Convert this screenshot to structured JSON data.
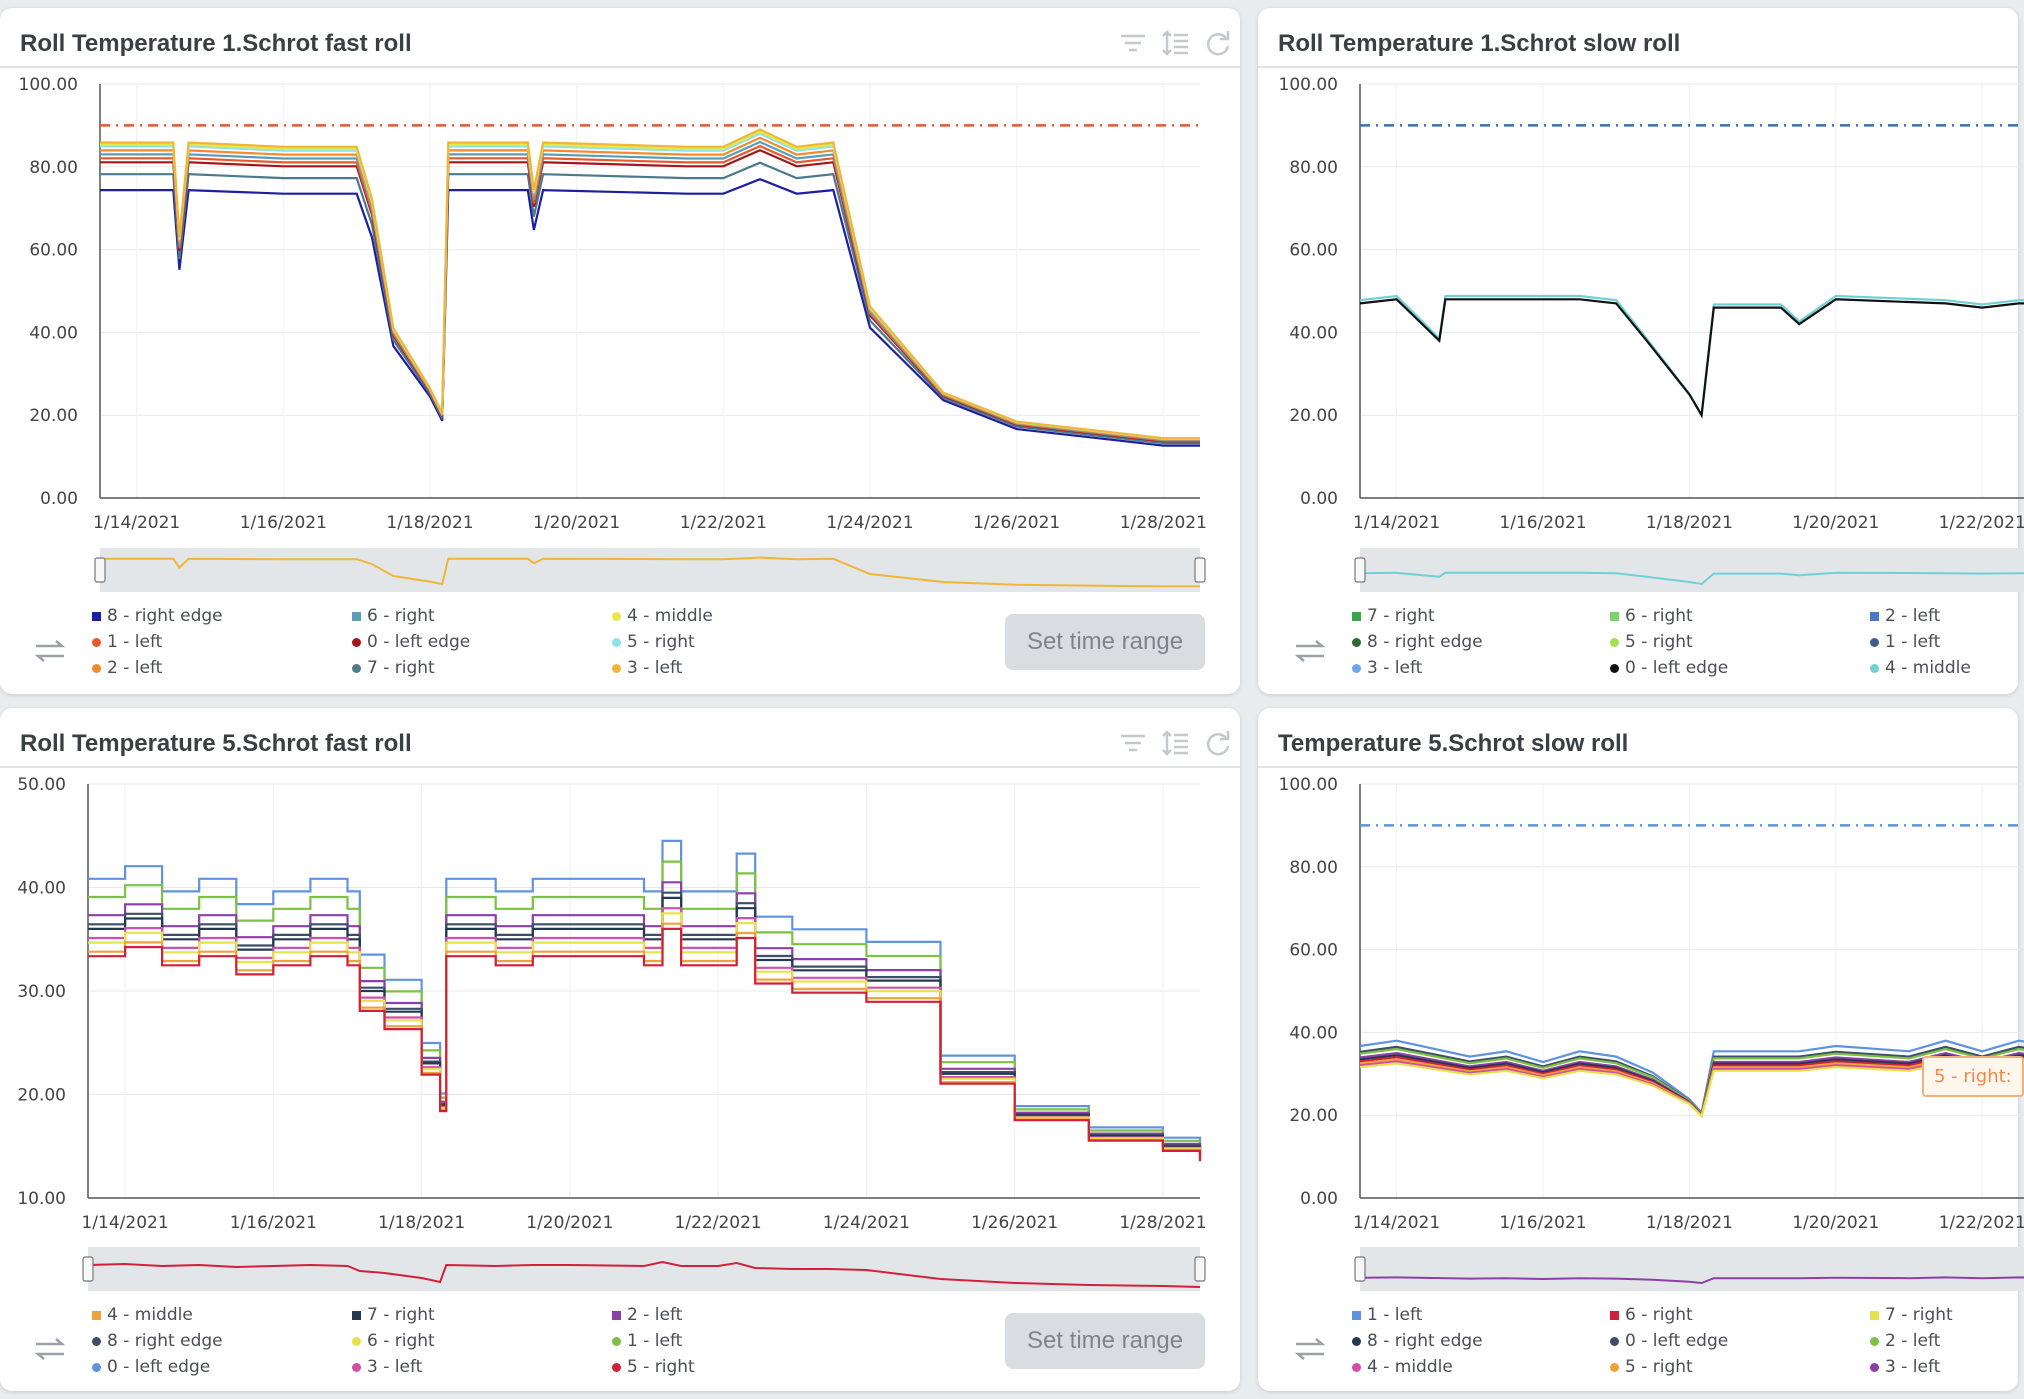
{
  "button_label": "Set time range",
  "tooltip_text": "5 - right:",
  "chart_data": [
    {
      "id": "c1",
      "type": "line",
      "title": "Roll Temperature 1.Schrot fast roll",
      "xlim": [
        "2021-01-13T12:00",
        "2021-01-28T12:00"
      ],
      "xticks": [
        "1/14/2021",
        "1/16/2021",
        "1/18/2021",
        "1/20/2021",
        "1/22/2021",
        "1/24/2021",
        "1/26/2021",
        "1/28/2021"
      ],
      "ylim": [
        0,
        100
      ],
      "yticks": [
        "0.00",
        "20.00",
        "40.00",
        "60.00",
        "80.00",
        "100.00"
      ],
      "threshold": 90,
      "threshold_color": "#e8582b",
      "legend": [
        {
          "name": "8 - right edge",
          "color": "#1f1ea0"
        },
        {
          "name": "6 - right",
          "color": "#5b9db5"
        },
        {
          "name": "4 - middle",
          "color": "#e6e84a"
        },
        {
          "name": "1 - left",
          "color": "#e8582b"
        },
        {
          "name": "0 - left edge",
          "color": "#a3161b"
        },
        {
          "name": "5 - right",
          "color": "#8ee2e8"
        },
        {
          "name": "2 - left",
          "color": "#f28a2e"
        },
        {
          "name": "7 - right",
          "color": "#4a7a8c"
        },
        {
          "name": "3 - left",
          "color": "#f0b63a"
        }
      ],
      "profile": {
        "x": [
          "2021-01-13T12:00",
          "2021-01-14T12:00",
          "2021-01-14T14:00",
          "2021-01-14T17:00",
          "2021-01-16T00:00",
          "2021-01-16T12:00",
          "2021-01-17T00:00",
          "2021-01-17T05:00",
          "2021-01-17T12:00",
          "2021-01-18T00:00",
          "2021-01-18T04:00",
          "2021-01-18T06:00",
          "2021-01-19T08:00",
          "2021-01-19T10:00",
          "2021-01-19T13:00",
          "2021-01-21T12:00",
          "2021-01-22T00:00",
          "2021-01-22T12:00",
          "2021-01-23T00:00",
          "2021-01-23T12:00",
          "2021-01-24T00:00",
          "2021-01-25T00:00",
          "2021-01-26T00:00",
          "2021-01-27T00:00",
          "2021-01-28T00:00",
          "2021-01-28T12:00"
        ],
        "y": [
          83,
          83,
          61,
          83,
          82,
          82,
          82,
          70,
          40,
          26,
          20,
          83,
          83,
          72,
          83,
          82,
          82,
          86,
          82,
          83,
          45,
          25,
          18,
          16,
          14,
          14
        ]
      },
      "series_offsets": [
        {
          "name": "8 - right edge",
          "offset": -9
        },
        {
          "name": "7 - right",
          "offset": -5
        },
        {
          "name": "0 - left edge",
          "offset": -2
        },
        {
          "name": "1 - left",
          "offset": -1
        },
        {
          "name": "6 - right",
          "offset": 0
        },
        {
          "name": "2 - left",
          "offset": 1
        },
        {
          "name": "5 - right",
          "offset": 2
        },
        {
          "name": "4 - middle",
          "offset": 2.5
        },
        {
          "name": "3 - left",
          "offset": 3
        }
      ]
    },
    {
      "id": "c2",
      "type": "line",
      "title": "Roll Temperature 1.Schrot slow roll",
      "xlim": [
        "2021-01-13T12:00",
        "2021-01-28T12:00"
      ],
      "xticks": [
        "1/14/2021",
        "1/16/2021",
        "1/18/2021",
        "1/20/2021",
        "1/22/2021"
      ],
      "ylim": [
        0,
        100
      ],
      "yticks": [
        "0.00",
        "20.00",
        "40.00",
        "60.00",
        "80.00",
        "100.00"
      ],
      "threshold": 90,
      "threshold_color": "#3d6fb0",
      "legend": [
        {
          "name": "7 - right",
          "color": "#3ea34d"
        },
        {
          "name": "6 - right",
          "color": "#7dd36b"
        },
        {
          "name": "2 - left",
          "color": "#4a78c8"
        },
        {
          "name": "8 - right edge",
          "color": "#2e6b35"
        },
        {
          "name": "5 - right",
          "color": "#a3e04d"
        },
        {
          "name": "1 - left",
          "color": "#3f5f8a"
        },
        {
          "name": "3 - left",
          "color": "#6ea5e8"
        },
        {
          "name": "0 - left edge",
          "color": "#111111"
        },
        {
          "name": "4 - middle",
          "color": "#6fd0d6"
        }
      ],
      "profile": {
        "x": [
          "2021-01-13T12:00",
          "2021-01-14T00:00",
          "2021-01-14T14:00",
          "2021-01-14T16:00",
          "2021-01-16T12:00",
          "2021-01-17T00:00",
          "2021-01-17T10:00",
          "2021-01-18T00:00",
          "2021-01-18T04:00",
          "2021-01-18T08:00",
          "2021-01-19T06:00",
          "2021-01-19T12:00",
          "2021-01-20T00:00",
          "2021-01-21T12:00",
          "2021-01-22T00:00",
          "2021-01-22T12:00",
          "2021-01-23T00:00",
          "2021-01-28T12:00"
        ],
        "y": [
          47,
          48,
          38,
          48,
          48,
          47,
          38,
          25,
          20,
          46,
          46,
          42,
          48,
          47,
          46,
          47,
          47,
          47
        ]
      },
      "series_offsets": [
        {
          "name": "4 - middle",
          "offset": 0.8
        },
        {
          "name": "0 - left edge",
          "offset": 0
        }
      ]
    },
    {
      "id": "c3",
      "type": "line",
      "title": "Roll Temperature 5.Schrot fast roll",
      "xlim": [
        "2021-01-13T12:00",
        "2021-01-28T12:00"
      ],
      "xticks": [
        "1/14/2021",
        "1/16/2021",
        "1/18/2021",
        "1/20/2021",
        "1/22/2021",
        "1/24/2021",
        "1/26/2021",
        "1/28/2021"
      ],
      "ylim": [
        10,
        50
      ],
      "yticks": [
        "10.00",
        "20.00",
        "30.00",
        "40.00",
        "50.00"
      ],
      "threshold": null,
      "legend": [
        {
          "name": "4 - middle",
          "color": "#f0a23a"
        },
        {
          "name": "7 - right",
          "color": "#243a52"
        },
        {
          "name": "2 - left",
          "color": "#8b3fa8"
        },
        {
          "name": "8 - right edge",
          "color": "#3d4e66"
        },
        {
          "name": "6 - right",
          "color": "#e6e34a"
        },
        {
          "name": "1 - left",
          "color": "#7cc142"
        },
        {
          "name": "0 - left edge",
          "color": "#5f93df"
        },
        {
          "name": "3 - left",
          "color": "#d04fa8"
        },
        {
          "name": "5 - right",
          "color": "#d41f3a"
        }
      ],
      "profile": {
        "x": [
          "2021-01-13T12:00",
          "2021-01-14T00:00",
          "2021-01-14T12:00",
          "2021-01-15T00:00",
          "2021-01-15T12:00",
          "2021-01-16T00:00",
          "2021-01-16T12:00",
          "2021-01-17T00:00",
          "2021-01-17T04:00",
          "2021-01-17T12:00",
          "2021-01-18T00:00",
          "2021-01-18T06:00",
          "2021-01-18T08:00",
          "2021-01-19T00:00",
          "2021-01-19T12:00",
          "2021-01-20T00:00",
          "2021-01-21T00:00",
          "2021-01-21T06:00",
          "2021-01-21T12:00",
          "2021-01-22T00:00",
          "2021-01-22T06:00",
          "2021-01-22T12:00",
          "2021-01-23T00:00",
          "2021-01-23T12:00",
          "2021-01-24T00:00",
          "2021-01-25T00:00",
          "2021-01-26T00:00",
          "2021-01-27T00:00",
          "2021-01-28T00:00",
          "2021-01-28T12:00"
        ],
        "y": [
          36,
          37,
          35,
          36,
          34,
          35,
          36,
          35,
          30,
          28,
          23,
          19,
          36,
          35,
          36,
          36,
          35,
          39,
          35,
          35,
          38,
          33,
          32,
          32,
          31,
          22,
          18,
          16,
          15,
          14
        ]
      },
      "series_offsets": [
        {
          "name": "0 - left edge",
          "offset": 5.5
        },
        {
          "name": "1 - left",
          "offset": 3.5
        },
        {
          "name": "2 - left",
          "offset": 1.5
        },
        {
          "name": "8 - right edge",
          "offset": 0.5
        },
        {
          "name": "7 - right",
          "offset": 0
        },
        {
          "name": "3 - left",
          "offset": -1
        },
        {
          "name": "6 - right",
          "offset": -1.5
        },
        {
          "name": "4 - middle",
          "offset": -2.5
        },
        {
          "name": "5 - right",
          "offset": -3
        }
      ]
    },
    {
      "id": "c4",
      "type": "line",
      "title": "Temperature 5.Schrot slow roll",
      "xlim": [
        "2021-01-13T12:00",
        "2021-01-28T12:00"
      ],
      "xticks": [
        "1/14/2021",
        "1/16/2021",
        "1/18/2021",
        "1/20/2021",
        "1/22/2021"
      ],
      "ylim": [
        0,
        100
      ],
      "yticks": [
        "0.00",
        "20.00",
        "40.00",
        "60.00",
        "80.00",
        "100.00"
      ],
      "threshold": 90,
      "threshold_color": "#5b93df",
      "legend": [
        {
          "name": "1 - left",
          "color": "#5f93df"
        },
        {
          "name": "6 - right",
          "color": "#d41f3a"
        },
        {
          "name": "7 - right",
          "color": "#e6e34a"
        },
        {
          "name": "8 - right edge",
          "color": "#243a52"
        },
        {
          "name": "0 - left edge",
          "color": "#3d4e66"
        },
        {
          "name": "2 - left",
          "color": "#7cc142"
        },
        {
          "name": "4 - middle",
          "color": "#d04fa8"
        },
        {
          "name": "5 - right",
          "color": "#f0a23a"
        },
        {
          "name": "3 - left",
          "color": "#8b3fa8"
        }
      ],
      "profile": {
        "x": [
          "2021-01-13T12:00",
          "2021-01-14T00:00",
          "2021-01-15T00:00",
          "2021-01-15T12:00",
          "2021-01-16T00:00",
          "2021-01-16T12:00",
          "2021-01-17T00:00",
          "2021-01-17T12:00",
          "2021-01-18T00:00",
          "2021-01-18T04:00",
          "2021-01-18T08:00",
          "2021-01-19T12:00",
          "2021-01-20T00:00",
          "2021-01-21T00:00",
          "2021-01-21T12:00",
          "2021-01-22T00:00",
          "2021-01-22T12:00",
          "2021-01-23T00:00",
          "2021-01-28T12:00"
        ],
        "y": [
          33,
          34,
          31,
          32,
          30,
          32,
          31,
          28,
          23,
          20,
          32,
          32,
          33,
          32,
          34,
          32,
          34,
          33,
          33
        ]
      },
      "series_offsets": [
        {
          "name": "1 - left",
          "offset": 4
        },
        {
          "name": "0 - left edge",
          "offset": 2.5
        },
        {
          "name": "2 - left",
          "offset": 2
        },
        {
          "name": "3 - left",
          "offset": 1
        },
        {
          "name": "8 - right edge",
          "offset": 0.5
        },
        {
          "name": "6 - right",
          "offset": 0
        },
        {
          "name": "5 - right",
          "offset": -0.5
        },
        {
          "name": "4 - middle",
          "offset": -1
        },
        {
          "name": "7 - right",
          "offset": -1.5
        }
      ]
    }
  ]
}
